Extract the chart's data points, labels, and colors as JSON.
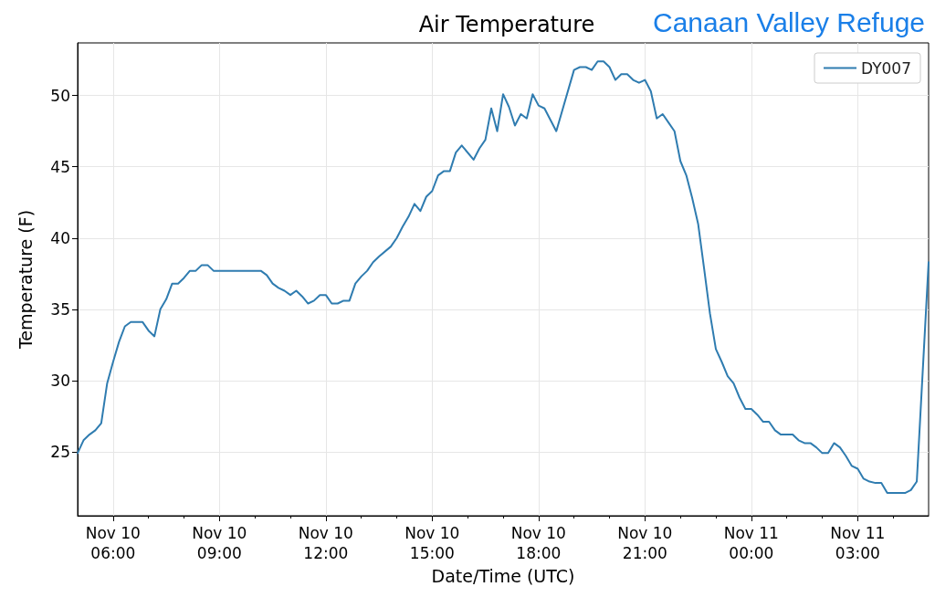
{
  "chart_data": {
    "type": "line",
    "title": "Air Temperature",
    "subtitle": "Canaan Valley Refuge",
    "xlabel": "Date/Time (UTC)",
    "ylabel": "Temperature (F)",
    "x": [
      "--11-10T05:00",
      "--11-10T05:10",
      "--11-10T05:20",
      "--11-10T05:30",
      "--11-10T05:40",
      "--11-10T05:50",
      "--11-10T06:00",
      "--11-10T06:10",
      "--11-10T06:20",
      "--11-10T06:30",
      "--11-10T06:40",
      "--11-10T06:50",
      "--11-10T07:00",
      "--11-10T07:10",
      "--11-10T07:20",
      "--11-10T07:30",
      "--11-10T07:40",
      "--11-10T07:50",
      "--11-10T08:00",
      "--11-10T08:10",
      "--11-10T08:20",
      "--11-10T08:30",
      "--11-10T08:40",
      "--11-10T08:50",
      "--11-10T10:10",
      "--11-10T10:20",
      "--11-10T10:30",
      "--11-10T10:40",
      "--11-10T10:50",
      "--11-10T11:00",
      "--11-10T11:10",
      "--11-10T11:20",
      "--11-10T11:30",
      "--11-10T11:40",
      "--11-10T11:50",
      "--11-10T12:00",
      "--11-10T12:10",
      "--11-10T12:20",
      "--11-10T12:30",
      "--11-10T12:40",
      "--11-10T12:50",
      "--11-10T13:00",
      "--11-10T13:10",
      "--11-10T13:20",
      "--11-10T13:30",
      "--11-10T13:50",
      "--11-10T14:00",
      "--11-10T14:10",
      "--11-10T14:20",
      "--11-10T14:30",
      "--11-10T14:40",
      "--11-10T14:50",
      "--11-10T15:00",
      "--11-10T15:10",
      "--11-10T15:20",
      "--11-10T15:30",
      "--11-10T15:40",
      "--11-10T15:50",
      "--11-10T16:10",
      "--11-10T16:20",
      "--11-10T16:30",
      "--11-10T16:40",
      "--11-10T16:50",
      "--11-10T17:00",
      "--11-10T17:10",
      "--11-10T17:20",
      "--11-10T17:30",
      "--11-10T17:40",
      "--11-10T17:50",
      "--11-10T18:00",
      "--11-10T18:10",
      "--11-10T18:30",
      "--11-10T19:00",
      "--11-10T19:10",
      "--11-10T19:20",
      "--11-10T19:30",
      "--11-10T19:40",
      "--11-10T19:50",
      "--11-10T20:00",
      "--11-10T20:10",
      "--11-10T20:20",
      "--11-10T20:30",
      "--11-10T20:40",
      "--11-10T20:50",
      "--11-10T21:00",
      "--11-10T21:10",
      "--11-10T21:20",
      "--11-10T21:30",
      "--11-10T21:40",
      "--11-10T21:50",
      "--11-10T22:00",
      "--11-10T22:10",
      "--11-10T22:20",
      "--11-10T22:30",
      "--11-10T22:40",
      "--11-10T22:50",
      "--11-10T23:00",
      "--11-10T23:10",
      "--11-10T23:20",
      "--11-10T23:30",
      "--11-10T23:40",
      "--11-10T23:50",
      "--11-11T00:00",
      "--11-11T00:10",
      "--11-11T00:20",
      "--11-11T00:30",
      "--11-11T00:40",
      "--11-11T00:50",
      "--11-11T01:10",
      "--11-11T01:20",
      "--11-11T01:30",
      "--11-11T01:40",
      "--11-11T01:50",
      "--11-11T02:00",
      "--11-11T02:10",
      "--11-11T02:20",
      "--11-11T02:30",
      "--11-11T02:40",
      "--11-11T02:50",
      "--11-11T03:00",
      "--11-11T03:10",
      "--11-11T03:20",
      "--11-11T03:30",
      "--11-11T03:40",
      "--11-11T03:50",
      "--11-11T04:20",
      "--11-11T04:30",
      "--11-11T04:40",
      "--11-11T05:00"
    ],
    "series": [
      {
        "name": "DY007",
        "color": "#2f7cb0",
        "values": [
          24.9,
          25.8,
          26.2,
          26.5,
          27.0,
          29.8,
          31.3,
          32.7,
          33.8,
          34.1,
          34.1,
          34.1,
          33.5,
          33.1,
          35.0,
          35.7,
          36.8,
          36.8,
          37.2,
          37.7,
          37.7,
          38.1,
          38.1,
          37.7,
          37.7,
          37.4,
          36.8,
          36.5,
          36.3,
          36.0,
          36.3,
          35.9,
          35.4,
          35.6,
          36.0,
          36.0,
          35.4,
          35.4,
          35.6,
          35.6,
          36.8,
          37.3,
          37.7,
          38.3,
          38.7,
          39.4,
          40.0,
          40.8,
          41.5,
          42.4,
          41.9,
          42.9,
          43.3,
          44.4,
          44.7,
          44.7,
          46.0,
          46.5,
          45.5,
          46.3,
          46.9,
          49.1,
          47.5,
          50.1,
          49.2,
          47.9,
          48.7,
          48.4,
          50.1,
          49.3,
          49.1,
          47.5,
          51.8,
          52.0,
          52.0,
          51.8,
          52.4,
          52.4,
          52.0,
          51.1,
          51.5,
          51.5,
          51.1,
          50.9,
          51.1,
          50.3,
          48.4,
          48.7,
          48.1,
          47.5,
          45.4,
          44.4,
          42.8,
          41.0,
          37.9,
          34.7,
          32.2,
          31.3,
          30.3,
          29.8,
          28.8,
          28.0,
          28.0,
          27.6,
          27.1,
          27.1,
          26.5,
          26.2,
          26.2,
          25.8,
          25.6,
          25.6,
          25.3,
          24.9,
          24.9,
          25.6,
          25.3,
          24.7,
          24.0,
          23.8,
          23.1,
          22.9,
          22.8,
          22.8,
          22.1,
          22.1,
          22.3,
          22.9,
          38.3
        ]
      }
    ],
    "xlim": [
      "--11-10T05:00",
      "--11-11T05:00"
    ],
    "xticks": [
      {
        "value": "--11-10T06:00",
        "label": "Nov 10\n06:00"
      },
      {
        "value": "--11-10T09:00",
        "label": "Nov 10\n09:00"
      },
      {
        "value": "--11-10T12:00",
        "label": "Nov 10\n12:00"
      },
      {
        "value": "--11-10T15:00",
        "label": "Nov 10\n15:00"
      },
      {
        "value": "--11-10T18:00",
        "label": "Nov 10\n18:00"
      },
      {
        "value": "--11-10T21:00",
        "label": "Nov 10\n21:00"
      },
      {
        "value": "--11-11T00:00",
        "label": "Nov 11\n00:00"
      },
      {
        "value": "--11-11T03:00",
        "label": "Nov 11\n03:00"
      },
      {
        "value": "--11-10T07:00",
        "label": null
      },
      {
        "value": "--11-10T08:00",
        "label": null
      },
      {
        "value": "--11-10T10:00",
        "label": null
      },
      {
        "value": "--11-10T11:00",
        "label": null
      },
      {
        "value": "--11-10T13:00",
        "label": null
      },
      {
        "value": "--11-10T14:00",
        "label": null
      },
      {
        "value": "--11-10T16:00",
        "label": null
      },
      {
        "value": "--11-10T17:00",
        "label": null
      },
      {
        "value": "--11-10T19:00",
        "label": null
      },
      {
        "value": "--11-10T20:00",
        "label": null
      },
      {
        "value": "--11-10T22:00",
        "label": null
      },
      {
        "value": "--11-10T23:00",
        "label": null
      },
      {
        "value": "--11-11T01:00",
        "label": null
      },
      {
        "value": "--11-11T02:00",
        "label": null
      },
      {
        "value": "--11-11T04:00",
        "label": null
      }
    ],
    "ylim": [
      20.5,
      53.7
    ],
    "yticks": [
      25,
      30,
      35,
      40,
      45,
      50
    ],
    "grid": true,
    "legend": "top right",
    "marker": "none",
    "line_style": "solid"
  }
}
